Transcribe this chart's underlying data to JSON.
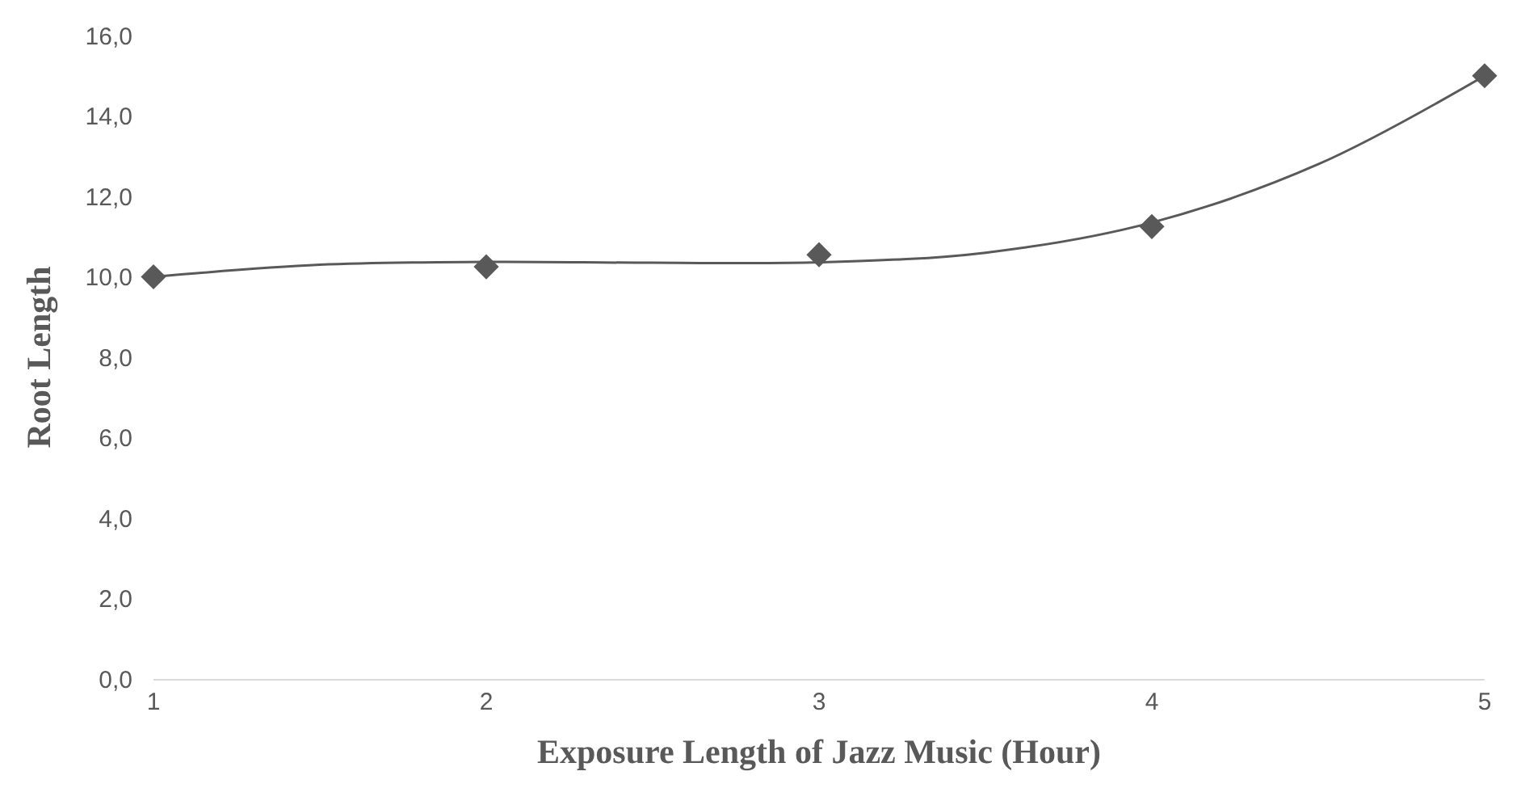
{
  "chart_data": {
    "type": "scatter",
    "xlabel": "Exposure Length of Jazz Music (Hour)",
    "ylabel": "Root Length",
    "xlim": [
      1,
      5
    ],
    "xticks": [
      1,
      2,
      3,
      4,
      5
    ],
    "ylim": [
      0,
      16
    ],
    "yticks": [
      {
        "value": 0,
        "label": "0,0"
      },
      {
        "value": 2,
        "label": "2,0"
      },
      {
        "value": 4,
        "label": "4,0"
      },
      {
        "value": 6,
        "label": "6,0"
      },
      {
        "value": 8,
        "label": "8,0"
      },
      {
        "value": 10,
        "label": "10,0"
      },
      {
        "value": 12,
        "label": "12,0"
      },
      {
        "value": 14,
        "label": "14,0"
      },
      {
        "value": 16,
        "label": "16,0"
      }
    ],
    "grid": false,
    "series": [
      {
        "type": "line",
        "color": "#595959",
        "marker": "none",
        "line_style": "solid",
        "x": [
          1,
          1.5,
          2,
          2.5,
          3,
          3.5,
          4,
          4.5,
          5
        ],
        "values": [
          10.0,
          10.3,
          10.37,
          10.35,
          10.36,
          10.6,
          11.35,
          12.8,
          15.0
        ]
      },
      {
        "color": "#595959",
        "marker": "diamond",
        "x": [
          1,
          2,
          3,
          4,
          5
        ],
        "values": [
          10.0,
          10.25,
          10.55,
          11.25,
          15.0
        ]
      }
    ]
  }
}
